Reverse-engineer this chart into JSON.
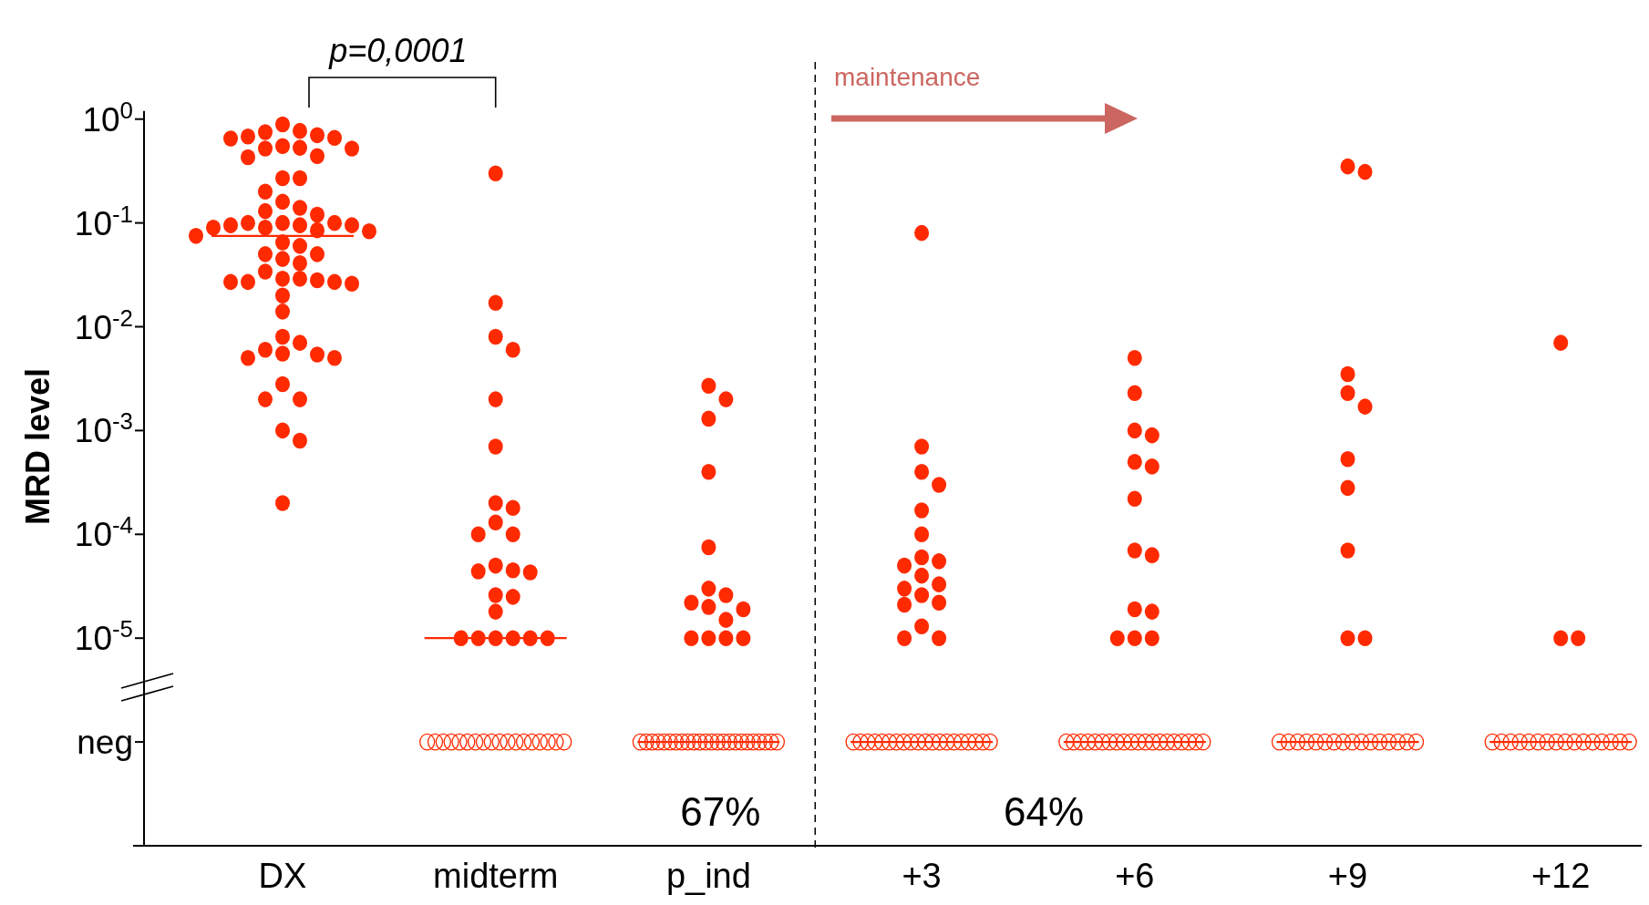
{
  "chart_data": {
    "type": "scatter",
    "ylabel": "MRD level",
    "categories": [
      "DX",
      "midterm",
      "p_ind",
      "+3",
      "+6",
      "+9",
      "+12"
    ],
    "log": true,
    "ylim": [
      1e-07,
      1.2
    ],
    "yticks": [
      {
        "value": 1,
        "label": "10$^{0}$"
      },
      {
        "value": 0.1,
        "label": "10$^{-1}$"
      },
      {
        "value": 0.01,
        "label": "10$^{-2}$"
      },
      {
        "value": 0.001,
        "label": "10$^{-3}$"
      },
      {
        "value": 0.0001,
        "label": "10$^{-4}$"
      },
      {
        "value": 1e-05,
        "label": "10$^{-5}$"
      },
      {
        "value": 1e-06,
        "label": "neg"
      }
    ],
    "marker": "circle",
    "series": [
      {
        "color": "#ff2a00",
        "x": [
          "DX",
          "DX",
          "DX",
          "DX",
          "DX",
          "DX",
          "DX",
          "DX",
          "DX",
          "DX",
          "DX",
          "DX",
          "DX",
          "DX",
          "DX",
          "DX",
          "DX",
          "DX",
          "DX",
          "DX",
          "DX",
          "DX",
          "DX",
          "DX",
          "DX",
          "DX",
          "DX",
          "DX",
          "DX",
          "DX",
          "DX",
          "DX",
          "DX",
          "DX",
          "DX",
          "DX",
          "DX",
          "DX",
          "DX",
          "DX",
          "DX",
          "DX",
          "DX",
          "DX",
          "DX",
          "DX",
          "DX",
          "DX",
          "DX",
          "DX",
          "DX",
          "DX",
          "DX",
          "DX",
          "DX",
          "DX",
          "DX",
          "DX",
          "DX",
          "DX",
          "midterm",
          "midterm",
          "midterm",
          "midterm",
          "midterm",
          "midterm",
          "midterm",
          "midterm",
          "midterm",
          "midterm",
          "midterm",
          "midterm",
          "midterm",
          "midterm",
          "midterm",
          "midterm",
          "midterm",
          "midterm",
          "midterm",
          "midterm",
          "midterm",
          "midterm",
          "midterm",
          "midterm",
          "p_ind",
          "p_ind",
          "p_ind",
          "p_ind",
          "p_ind",
          "p_ind",
          "p_ind",
          "p_ind",
          "p_ind",
          "p_ind",
          "p_ind",
          "p_ind",
          "p_ind",
          "p_ind",
          "p_ind",
          "+3",
          "+3",
          "+3",
          "+3",
          "+3",
          "+3",
          "+3",
          "+3",
          "+3",
          "+3",
          "+3",
          "+3",
          "+3",
          "+3",
          "+3",
          "+3",
          "+3",
          "+3",
          "+6",
          "+6",
          "+6",
          "+6",
          "+6",
          "+6",
          "+6",
          "+6",
          "+6",
          "+6",
          "+6",
          "+6",
          "+6",
          "+6",
          "+9",
          "+9",
          "+9",
          "+9",
          "+9",
          "+9",
          "+9",
          "+9",
          "+9",
          "+9",
          "+12",
          "+12",
          "+12"
        ],
        "values": [
          0.89,
          0.68,
          0.77,
          0.75,
          0.7,
          0.65,
          0.55,
          0.53,
          0.52,
          0.44,
          0.43,
          0.52,
          0.66,
          0.27,
          0.27,
          0.2,
          0.16,
          0.12,
          0.14,
          0.13,
          0.1,
          0.1,
          0.09,
          0.095,
          0.1,
          0.095,
          0.09,
          0.085,
          0.075,
          0.083,
          0.095,
          0.065,
          0.06,
          0.05,
          0.041,
          0.045,
          0.05,
          0.034,
          0.029,
          0.027,
          0.028,
          0.026,
          0.027,
          0.027,
          0.029,
          0.02,
          0.014,
          0.007,
          0.0054,
          0.005,
          0.005,
          0.0055,
          0.006,
          0.008,
          0.0028,
          0.002,
          0.002,
          0.001,
          0.0008,
          0.0002,
          0.3,
          0.017,
          0.008,
          0.006,
          0.002,
          0.0007,
          0.0002,
          0.00018,
          0.00013,
          0.0001,
          0.0001,
          5e-05,
          4.4e-05,
          4.3e-05,
          4.5e-05,
          2.6e-05,
          2.5e-05,
          1.8e-05,
          1e-05,
          1e-05,
          1e-05,
          1e-05,
          1e-05,
          1e-05,
          0.0027,
          0.002,
          0.0013,
          0.0004,
          7.5e-05,
          3e-05,
          2.2e-05,
          1.9e-05,
          2e-05,
          2.6e-05,
          1.5e-05,
          1e-05,
          1e-05,
          1e-05,
          1e-05,
          0.08,
          0.0007,
          0.0004,
          0.0003,
          0.00017,
          0.0001,
          6e-05,
          5e-05,
          5.5e-05,
          4e-05,
          3.3e-05,
          3e-05,
          2.2e-05,
          2.1e-05,
          2.6e-05,
          1.3e-05,
          1e-05,
          1e-05,
          0.005,
          0.0023,
          0.001,
          0.0009,
          0.0005,
          0.00045,
          0.00022,
          7e-05,
          6.3e-05,
          1.9e-05,
          1.8e-05,
          1e-05,
          1e-05,
          1e-05,
          0.35,
          0.31,
          0.0035,
          0.0023,
          0.0017,
          0.00053,
          0.00028,
          7e-05,
          1e-05,
          1e-05,
          0.007,
          1e-05,
          1e-05
        ]
      },
      {
        "color": "#ff2a00",
        "x": [
          "midterm",
          "midterm",
          "midterm",
          "midterm",
          "midterm",
          "midterm",
          "midterm",
          "midterm",
          "midterm",
          "midterm",
          "midterm",
          "midterm",
          "midterm",
          "midterm",
          "midterm",
          "midterm",
          "midterm",
          "midterm",
          "p_ind",
          "p_ind",
          "p_ind",
          "p_ind",
          "p_ind",
          "p_ind",
          "p_ind",
          "p_ind",
          "p_ind",
          "p_ind",
          "p_ind",
          "p_ind",
          "p_ind",
          "p_ind",
          "p_ind",
          "p_ind",
          "p_ind",
          "p_ind",
          "p_ind",
          "p_ind",
          "p_ind",
          "p_ind",
          "p_ind",
          "p_ind",
          "+3",
          "+3",
          "+3",
          "+3",
          "+3",
          "+3",
          "+3",
          "+3",
          "+3",
          "+3",
          "+3",
          "+3",
          "+3",
          "+3",
          "+3",
          "+3",
          "+3",
          "+3",
          "+3",
          "+3",
          "+6",
          "+6",
          "+6",
          "+6",
          "+6",
          "+6",
          "+6",
          "+6",
          "+6",
          "+6",
          "+6",
          "+6",
          "+6",
          "+6",
          "+6",
          "+6",
          "+6",
          "+6",
          "+6",
          "+6",
          "+9",
          "+9",
          "+9",
          "+9",
          "+9",
          "+9",
          "+9",
          "+9",
          "+9",
          "+9",
          "+9",
          "+9",
          "+9",
          "+9",
          "+9",
          "+9",
          "+12",
          "+12",
          "+12",
          "+12",
          "+12",
          "+12",
          "+12",
          "+12",
          "+12",
          "+12",
          "+12",
          "+12",
          "+12",
          "+12",
          "+12",
          "+12"
        ],
        "values": [
          1e-06,
          1e-06,
          1e-06,
          1e-06,
          1e-06,
          1e-06,
          1e-06,
          1e-06,
          1e-06,
          1e-06,
          1e-06,
          1e-06,
          1e-06,
          1e-06,
          1e-06,
          1e-06,
          1e-06,
          1e-06,
          1e-06,
          1e-06,
          1e-06,
          1e-06,
          1e-06,
          1e-06,
          1e-06,
          1e-06,
          1e-06,
          1e-06,
          1e-06,
          1e-06,
          1e-06,
          1e-06,
          1e-06,
          1e-06,
          1e-06,
          1e-06,
          1e-06,
          1e-06,
          1e-06,
          1e-06,
          1e-06,
          1e-06,
          1e-06,
          1e-06,
          1e-06,
          1e-06,
          1e-06,
          1e-06,
          1e-06,
          1e-06,
          1e-06,
          1e-06,
          1e-06,
          1e-06,
          1e-06,
          1e-06,
          1e-06,
          1e-06,
          1e-06,
          1e-06,
          1e-06,
          1e-06,
          1e-06,
          1e-06,
          1e-06,
          1e-06,
          1e-06,
          1e-06,
          1e-06,
          1e-06,
          1e-06,
          1e-06,
          1e-06,
          1e-06,
          1e-06,
          1e-06,
          1e-06,
          1e-06,
          1e-06,
          1e-06,
          1e-06,
          1e-06,
          1e-06,
          1e-06,
          1e-06,
          1e-06,
          1e-06,
          1e-06,
          1e-06,
          1e-06,
          1e-06,
          1e-06,
          1e-06,
          1e-06,
          1e-06,
          1e-06,
          1e-06,
          1e-06,
          1e-06,
          1e-06,
          1e-06,
          1e-06,
          1e-06,
          1e-06,
          1e-06,
          1e-06,
          1e-06,
          1e-06,
          1e-06,
          1e-06,
          1e-06,
          1e-06,
          1e-06,
          1e-06
        ]
      },
      {
        "type": "box",
        "color": "#ff2a00",
        "boxes": [
          {
            "low": 0.075,
            "q1": 0.075,
            "median": 0.075,
            "q3": 0.075,
            "high": 0.075
          },
          {
            "low": 1e-05,
            "q1": 1e-05,
            "median": 1e-05,
            "q3": 1e-05,
            "high": 1e-05
          },
          {
            "low": 1e-06,
            "q1": 1e-06,
            "median": 1e-06,
            "q3": 1e-06,
            "high": 1e-06
          },
          {
            "low": 1e-06,
            "q1": 1e-06,
            "median": 1e-06,
            "q3": 1e-06,
            "high": 1e-06
          },
          {
            "low": 1e-06,
            "q1": 1e-06,
            "median": 1e-06,
            "q3": 1e-06,
            "high": 1e-06
          },
          {
            "low": 1e-06,
            "q1": 1e-06,
            "median": 1e-06,
            "q3": 1e-06,
            "high": 1e-06
          },
          {
            "low": 1e-06,
            "q1": 1e-06,
            "median": 1e-06,
            "q3": 1e-06,
            "high": 1e-06
          }
        ]
      }
    ],
    "annotations": [
      "p=0,0001",
      "maintenance",
      "67%",
      "64%"
    ]
  }
}
